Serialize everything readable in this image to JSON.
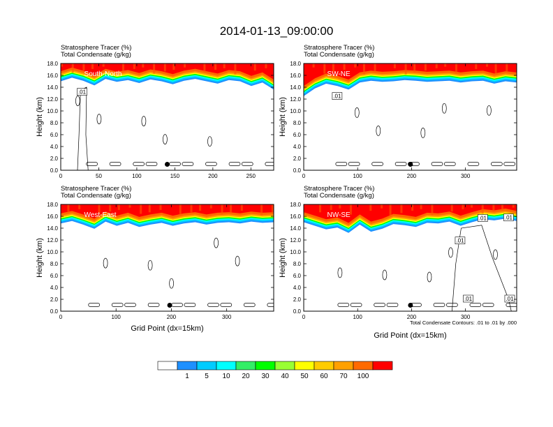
{
  "title": "2014-01-13_09:00:00",
  "chart_data": [
    {
      "type": "heatmap",
      "id": "sn",
      "panel_label": "South-North",
      "subtitle_lines": [
        "Stratosphere Tracer   (%)",
        "Total Condensate   (g/kg)"
      ],
      "ylabel": "Height (km)",
      "xlabel": "",
      "ylim": [
        0,
        18
      ],
      "xlim": [
        0,
        280
      ],
      "x_ticks": [
        0,
        50,
        100,
        150,
        200,
        250
      ],
      "y_ticks": [
        "0.0",
        "2.0",
        "4.0",
        "6.0",
        "8.0",
        "10.0",
        "12.0",
        "14.0",
        "16.0",
        "18.0"
      ],
      "marker": {
        "x": 140,
        "y": 1.0
      },
      "contour_labels": [
        {
          "text": ".01",
          "x": 28,
          "y": 13.1
        }
      ],
      "tropopause_km": [
        15.0,
        15.6,
        15.1,
        14.3,
        15.4,
        14.9,
        15.2,
        14.7,
        15.3,
        15.0,
        14.5,
        15.1,
        15.4,
        15.0,
        14.6,
        15.2,
        15.0,
        14.2,
        14.8,
        13.6
      ]
    },
    {
      "type": "heatmap",
      "id": "swne",
      "panel_label": "SW-NE",
      "subtitle_lines": [
        "Stratosphere Tracer   (%)",
        "Total Condensate   (g/kg)"
      ],
      "ylabel": "Height (km)",
      "xlabel": "",
      "ylim": [
        0,
        18
      ],
      "xlim": [
        0,
        395
      ],
      "x_ticks": [
        0,
        100,
        200,
        300
      ],
      "y_ticks": [
        "0.0",
        "2.0",
        "4.0",
        "6.0",
        "8.0",
        "10.0",
        "12.0",
        "14.0",
        "16.0",
        "18.0"
      ],
      "marker": {
        "x": 198,
        "y": 1.0
      },
      "contour_labels": [
        {
          "text": ".01",
          "x": 62,
          "y": 12.4
        }
      ],
      "tropopause_km": [
        12.5,
        13.8,
        14.6,
        14.2,
        13.6,
        14.8,
        15.1,
        14.9,
        15.0,
        15.2,
        15.1,
        14.9,
        15.0,
        15.1,
        14.8,
        15.0,
        15.1,
        14.6,
        15.0,
        14.8
      ]
    },
    {
      "type": "heatmap",
      "id": "we",
      "panel_label": "West-East",
      "subtitle_lines": [
        "Stratosphere Tracer   (%)",
        "Total Condensate   (g/kg)"
      ],
      "ylabel": "Height (km)",
      "xlabel": "Grid Point (dx=15km)",
      "ylim": [
        0,
        18
      ],
      "xlim": [
        0,
        385
      ],
      "x_ticks": [
        0,
        100,
        200,
        300
      ],
      "y_ticks": [
        "0.0",
        "2.0",
        "4.0",
        "6.0",
        "8.0",
        "10.0",
        "12.0",
        "14.0",
        "16.0",
        "18.0"
      ],
      "marker": {
        "x": 197,
        "y": 1.0
      },
      "contour_labels": [],
      "tropopause_km": [
        14.8,
        15.2,
        14.6,
        13.9,
        15.1,
        14.4,
        14.9,
        14.2,
        14.6,
        14.9,
        14.4,
        14.8,
        15.0,
        14.6,
        14.9,
        15.0,
        14.8,
        15.1,
        14.9,
        15.0
      ]
    },
    {
      "type": "heatmap",
      "id": "nwse",
      "panel_label": "NW-SE",
      "subtitle_lines": [
        "Stratosphere Tracer   (%)",
        "Total Condensate   (g/kg)"
      ],
      "ylabel": "Height (km)",
      "xlabel": "Grid Point (dx=15km)",
      "ylim": [
        0,
        18
      ],
      "xlim": [
        0,
        395
      ],
      "x_ticks": [
        0,
        100,
        200,
        300
      ],
      "y_ticks": [
        "0.0",
        "2.0",
        "4.0",
        "6.0",
        "8.0",
        "10.0",
        "12.0",
        "14.0",
        "16.0",
        "18.0"
      ],
      "marker": {
        "x": 198,
        "y": 1.0
      },
      "contour_labels": [
        {
          "text": ".01",
          "x": 290,
          "y": 11.8
        },
        {
          "text": ".01",
          "x": 332,
          "y": 15.6
        },
        {
          "text": ".01",
          "x": 380,
          "y": 15.7
        },
        {
          "text": ".01",
          "x": 305,
          "y": 2.0
        },
        {
          "text": ".01",
          "x": 382,
          "y": 2.0
        }
      ],
      "tropopause_km": [
        15.0,
        14.4,
        13.8,
        14.1,
        13.2,
        14.6,
        13.4,
        13.9,
        14.7,
        14.5,
        14.2,
        14.9,
        14.8,
        15.1,
        14.4,
        15.0,
        15.5,
        15.3,
        15.6,
        15.2
      ],
      "contour_note": "Total Condensate Contours: .01 to .01 by .000"
    }
  ],
  "colorbar": {
    "labels": [
      "1",
      "5",
      "10",
      "20",
      "30",
      "40",
      "50",
      "60",
      "70",
      "100"
    ],
    "colors": [
      "#ffffff",
      "#1e90ff",
      "#00ccff",
      "#00ffff",
      "#33ee66",
      "#00ff00",
      "#99ff33",
      "#ffff00",
      "#ffcc00",
      "#ffa000",
      "#ff6a00",
      "#ff0000"
    ]
  }
}
